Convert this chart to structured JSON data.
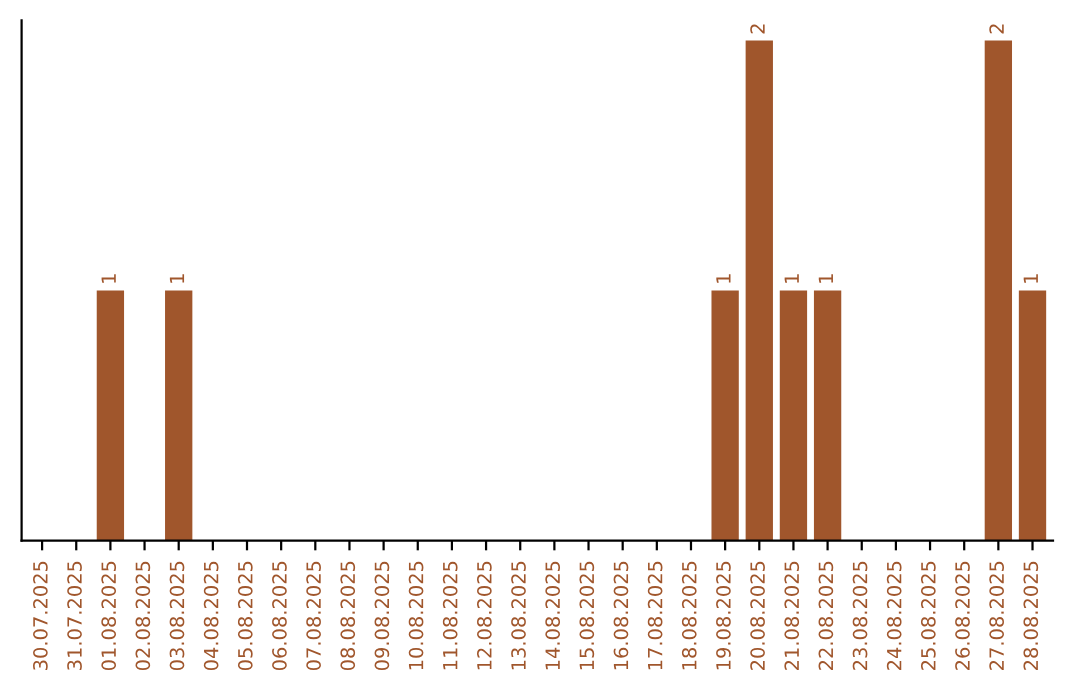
{
  "chart_data": {
    "type": "bar",
    "categories": [
      "30.07.2025",
      "31.07.2025",
      "01.08.2025",
      "02.08.2025",
      "03.08.2025",
      "04.08.2025",
      "05.08.2025",
      "06.08.2025",
      "07.08.2025",
      "08.08.2025",
      "09.08.2025",
      "10.08.2025",
      "11.08.2025",
      "12.08.2025",
      "13.08.2025",
      "14.08.2025",
      "15.08.2025",
      "16.08.2025",
      "17.08.2025",
      "18.08.2025",
      "19.08.2025",
      "20.08.2025",
      "21.08.2025",
      "22.08.2025",
      "23.08.2025",
      "24.08.2025",
      "25.08.2025",
      "26.08.2025",
      "27.08.2025",
      "28.08.2025"
    ],
    "values": [
      0,
      0,
      1,
      0,
      1,
      0,
      0,
      0,
      0,
      0,
      0,
      0,
      0,
      0,
      0,
      0,
      0,
      0,
      0,
      0,
      1,
      2,
      1,
      1,
      0,
      0,
      0,
      0,
      2,
      1
    ],
    "value_labels": [
      null,
      null,
      "1",
      null,
      "1",
      null,
      null,
      null,
      null,
      null,
      null,
      null,
      null,
      null,
      null,
      null,
      null,
      null,
      null,
      null,
      "1",
      "2",
      "1",
      "1",
      null,
      null,
      null,
      null,
      "2",
      "1"
    ],
    "color": "#a0562c",
    "grid": false,
    "legend": false
  }
}
